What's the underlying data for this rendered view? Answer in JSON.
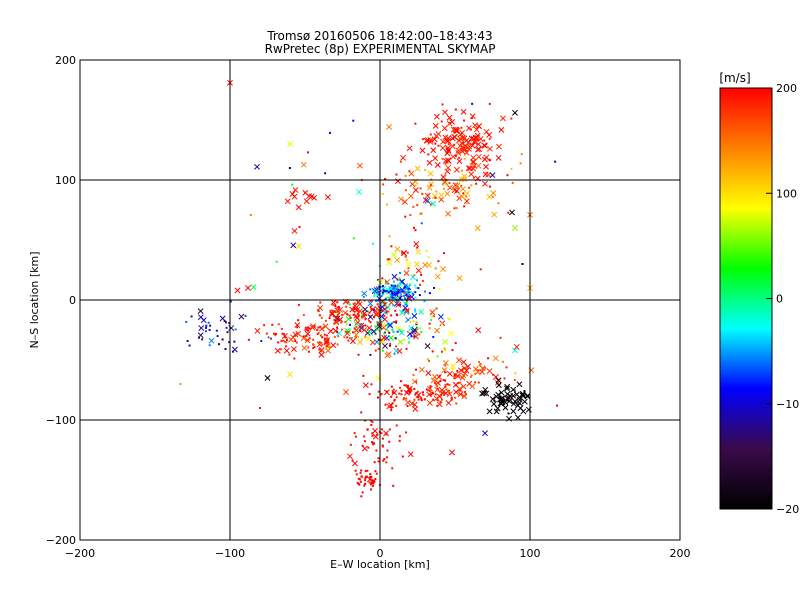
{
  "chart_data": {
    "type": "scatter",
    "title": "Tromsø 20160506 18:42:00–18:43:43",
    "subtitle": "RwPretec (8p) EXPERIMENTAL SKYMAP",
    "xlabel": "E–W location [km]",
    "ylabel": "N–S location [km]",
    "xlim": [
      -200,
      200
    ],
    "ylim": [
      -200,
      200
    ],
    "xticks": [
      -200,
      -100,
      0,
      100,
      200
    ],
    "yticks": [
      -200,
      -100,
      0,
      100,
      200
    ],
    "xtick_labels": [
      "−200",
      "−100",
      "0",
      "100",
      "200"
    ],
    "ytick_labels": [
      "−200",
      "−100",
      "0",
      "100",
      "200"
    ],
    "grid": true,
    "marker_types": [
      "x",
      "dot"
    ],
    "colorbar": {
      "label": "[m/s]",
      "min": -200,
      "max": 200,
      "ticks": [
        200,
        100,
        0,
        -100,
        -200
      ],
      "tick_labels": [
        "200",
        "100",
        "0",
        "−100",
        "−200"
      ],
      "colormap": [
        "#000000",
        "#3a0a4a",
        "#0000ff",
        "#00ffff",
        "#00ff00",
        "#ffff00",
        "#ff8000",
        "#ff0000"
      ]
    },
    "clusters": [
      {
        "cx": 55,
        "cy": 130,
        "sx": 14,
        "sy": 14,
        "n": 140,
        "vmean": 190,
        "vspread": 15,
        "xfrac": 0.8
      },
      {
        "cx": 40,
        "cy": 95,
        "sx": 22,
        "sy": 14,
        "n": 90,
        "vmean": 160,
        "vspread": 50,
        "xfrac": 0.5
      },
      {
        "cx": 10,
        "cy": 5,
        "sx": 8,
        "sy": 7,
        "n": 170,
        "vmean": -60,
        "vspread": 60,
        "xfrac": 0.3
      },
      {
        "cx": -10,
        "cy": -10,
        "sx": 14,
        "sy": 5,
        "n": 90,
        "vmean": 190,
        "vspread": 20,
        "xfrac": 0.3
      },
      {
        "cx": 5,
        "cy": -25,
        "sx": 18,
        "sy": 10,
        "n": 120,
        "vmean": 20,
        "vspread": 180,
        "xfrac": 0.4
      },
      {
        "cx": -45,
        "cy": -30,
        "sx": 16,
        "sy": 8,
        "n": 130,
        "vmean": 185,
        "vspread": 30,
        "xfrac": 0.3
      },
      {
        "cx": -110,
        "cy": -25,
        "sx": 12,
        "sy": 10,
        "n": 40,
        "vmean": -110,
        "vspread": 60,
        "xfrac": 0.3
      },
      {
        "cx": 25,
        "cy": -78,
        "sx": 18,
        "sy": 6,
        "n": 110,
        "vmean": 190,
        "vspread": 20,
        "xfrac": 0.3
      },
      {
        "cx": 55,
        "cy": -65,
        "sx": 12,
        "sy": 8,
        "n": 70,
        "vmean": 180,
        "vspread": 30,
        "xfrac": 0.5
      },
      {
        "cx": 85,
        "cy": -82,
        "sx": 8,
        "sy": 6,
        "n": 60,
        "vmean": -195,
        "vspread": 10,
        "xfrac": 0.8
      },
      {
        "cx": 0,
        "cy": -120,
        "sx": 10,
        "sy": 18,
        "n": 60,
        "vmean": 195,
        "vspread": 10,
        "xfrac": 0.05
      },
      {
        "cx": -8,
        "cy": -150,
        "sx": 4,
        "sy": 4,
        "n": 40,
        "vmean": 200,
        "vspread": 5,
        "xfrac": 0.05
      },
      {
        "cx": 20,
        "cy": 25,
        "sx": 10,
        "sy": 12,
        "n": 40,
        "vmean": 150,
        "vspread": 80,
        "xfrac": 0.4
      },
      {
        "cx": -50,
        "cy": 85,
        "sx": 10,
        "sy": 5,
        "n": 12,
        "vmean": 190,
        "vspread": 10,
        "xfrac": 0.9
      },
      {
        "cx": 40,
        "cy": -40,
        "sx": 25,
        "sy": 15,
        "n": 40,
        "vmean": 150,
        "vspread": 100,
        "xfrac": 0.3
      },
      {
        "cx": 0,
        "cy": 60,
        "sx": 50,
        "sy": 50,
        "n": 40,
        "vmean": 80,
        "vspread": 200,
        "xfrac": 0.3
      }
    ],
    "points": [
      {
        "x": -100,
        "y": 181,
        "v": 200,
        "m": "x"
      },
      {
        "x": -60,
        "y": 130,
        "v": 80,
        "m": "x"
      },
      {
        "x": -82,
        "y": 111,
        "v": -110,
        "m": "x"
      },
      {
        "x": 90,
        "y": 156,
        "v": -200,
        "m": "x"
      },
      {
        "x": 100,
        "y": 71,
        "v": 150,
        "m": "x"
      },
      {
        "x": 90,
        "y": 60,
        "v": 60,
        "m": "x"
      },
      {
        "x": 88,
        "y": 73,
        "v": -200,
        "m": "x"
      },
      {
        "x": 100,
        "y": 10,
        "v": 120,
        "m": "x"
      },
      {
        "x": 95,
        "y": 30,
        "v": -200,
        "m": "dot"
      },
      {
        "x": -95,
        "y": 8,
        "v": 200,
        "m": "x"
      },
      {
        "x": -88,
        "y": 10,
        "v": 200,
        "m": "x"
      },
      {
        "x": -75,
        "y": -65,
        "v": -200,
        "m": "x"
      },
      {
        "x": -60,
        "y": -62,
        "v": 100,
        "m": "x"
      },
      {
        "x": -133,
        "y": -70,
        "v": 140,
        "m": "dot"
      },
      {
        "x": 118,
        "y": -88,
        "v": 200,
        "m": "dot"
      },
      {
        "x": 92,
        "y": -98,
        "v": -200,
        "m": "x"
      },
      {
        "x": 70,
        "y": -111,
        "v": -100,
        "m": "x"
      },
      {
        "x": 90,
        "y": -42,
        "v": -20,
        "m": "x"
      },
      {
        "x": 48,
        "y": -127,
        "v": 200,
        "m": "x"
      },
      {
        "x": -80,
        "y": -90,
        "v": 200,
        "m": "dot"
      },
      {
        "x": -60,
        "y": 110,
        "v": -120,
        "m": "dot"
      },
      {
        "x": -48,
        "y": 123,
        "v": 200,
        "m": "dot"
      },
      {
        "x": 75,
        "y": 104,
        "v": -120,
        "m": "x"
      },
      {
        "x": 85,
        "y": 104,
        "v": 200,
        "m": "dot"
      }
    ]
  }
}
